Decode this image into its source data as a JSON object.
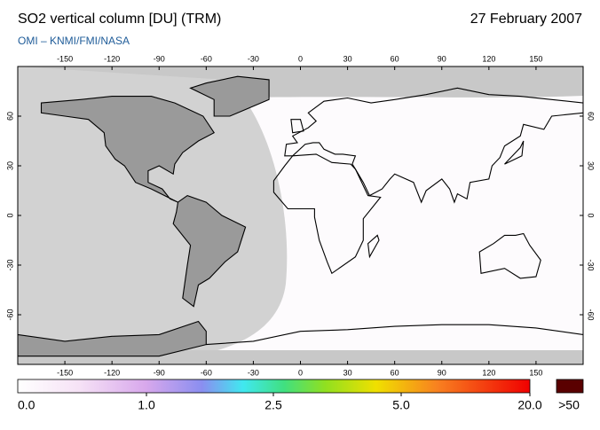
{
  "header": {
    "title": "SO2 vertical column [DU] (TRM)",
    "date": "27 February 2007",
    "subtitle": "OMI  –  KNMI/FMI/NASA"
  },
  "map": {
    "lon_ticks": [
      -150,
      -120,
      -90,
      -60,
      -30,
      0,
      30,
      60,
      90,
      120,
      150
    ],
    "lat_ticks": [
      60,
      30,
      0,
      -30,
      -60
    ]
  },
  "colorbar": {
    "labels": [
      "0.0",
      "1.0",
      "2.5",
      "5.0",
      "20.0"
    ],
    "overflow_label": ">50"
  }
}
